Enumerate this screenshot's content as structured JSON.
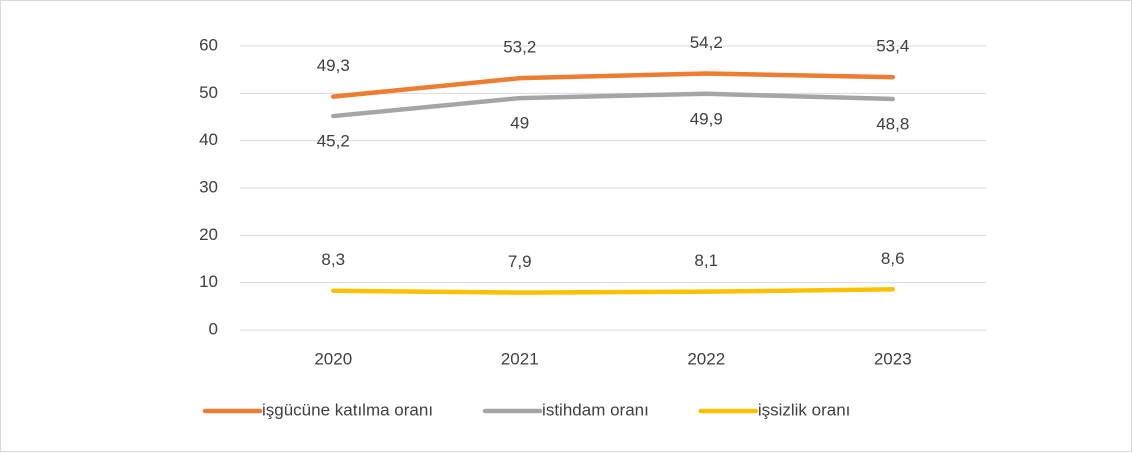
{
  "chart_data": {
    "type": "line",
    "categories": [
      "2020",
      "2021",
      "2022",
      "2023"
    ],
    "series": [
      {
        "name": "işgücüne katılma oranı",
        "color": "#ed7d31",
        "values": [
          49.3,
          53.2,
          54.2,
          53.4
        ],
        "value_labels": [
          "49,3",
          "53,2",
          "54,2",
          "53,4"
        ]
      },
      {
        "name": "istihdam oranı",
        "color": "#a5a5a5",
        "values": [
          45.2,
          49,
          49.9,
          48.8
        ],
        "value_labels": [
          "45,2",
          "49",
          "49,9",
          "48,8"
        ]
      },
      {
        "name": "işsizlik oranı",
        "color": "#ffc000",
        "values": [
          8.3,
          7.9,
          8.1,
          8.6
        ],
        "value_labels": [
          "8,3",
          "7,9",
          "8,1",
          "8,6"
        ]
      }
    ],
    "ylim": [
      0,
      60
    ],
    "yticks": [
      0,
      10,
      20,
      30,
      40,
      50,
      60
    ],
    "grid": true,
    "legend": "bottom"
  }
}
